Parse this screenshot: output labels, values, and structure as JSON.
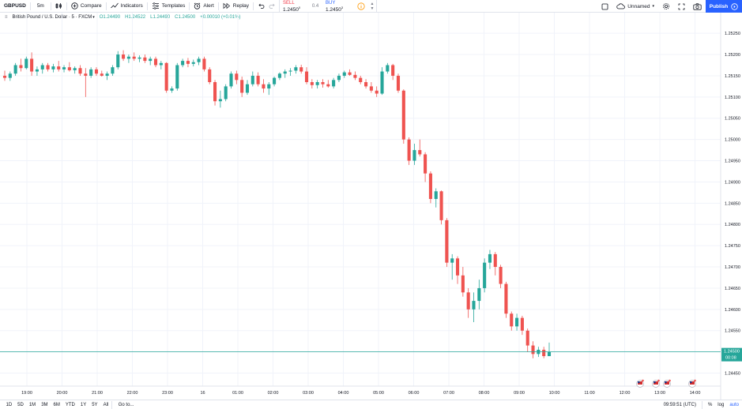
{
  "toolbar": {
    "symbol": "GBPUSD",
    "interval": "5m",
    "compare": "Compare",
    "indicators": "Indicators",
    "templates": "Templates",
    "alert": "Alert",
    "replay": "Replay",
    "layout_name": "Unnamed",
    "publish": "Publish"
  },
  "trade": {
    "sell_label": "SELL",
    "sell_value": "1.2450",
    "sell_sup": "0",
    "spread": "0.4",
    "buy_label": "BUY",
    "buy_value": "1.2450",
    "buy_sup": "3"
  },
  "legend": {
    "title": "British Pound / U.S. Dollar · 5 · FXCM",
    "o": "O1.24490",
    "h": "H1.24522",
    "l": "L1.24490",
    "c": "C1.24500",
    "change": "+0.00010 (+0.01%)"
  },
  "colors": {
    "up": "#26a69a",
    "down": "#ef5350",
    "price_line": "#26a69a",
    "grid": "#f0f3fa"
  },
  "chart_data": {
    "type": "candlestick",
    "symbol": "GBPUSD",
    "interval": "5",
    "y_ticks": [
      "1.25250",
      "1.25200",
      "1.25150",
      "1.25100",
      "1.25050",
      "1.25000",
      "1.24950",
      "1.24900",
      "1.24850",
      "1.24800",
      "1.24750",
      "1.24700",
      "1.24650",
      "1.24600",
      "1.24550",
      "1.24500",
      "1.24450"
    ],
    "x_ticks": [
      "19:00",
      "20:00",
      "21:00",
      "22:00",
      "23:00",
      "16",
      "01:00",
      "02:00",
      "03:00",
      "04:00",
      "05:00",
      "06:00",
      "07:00",
      "08:00",
      "09:00",
      "10:00",
      "11:00",
      "12:00",
      "13:00",
      "14:00"
    ],
    "ylim": [
      1.24425,
      1.2528
    ],
    "last_price": "1.24500",
    "countdown": "00:08",
    "candles": [
      [
        1.2515,
        1.25162,
        1.25138,
        1.25145
      ],
      [
        1.25145,
        1.2516,
        1.25138,
        1.25155
      ],
      [
        1.25155,
        1.2518,
        1.2515,
        1.25175
      ],
      [
        1.25175,
        1.2519,
        1.2516,
        1.25168
      ],
      [
        1.25168,
        1.25195,
        1.25165,
        1.2519
      ],
      [
        1.2519,
        1.25205,
        1.2515,
        1.2516
      ],
      [
        1.2516,
        1.25172,
        1.2515,
        1.25165
      ],
      [
        1.25165,
        1.2518,
        1.25155,
        1.25175
      ],
      [
        1.25175,
        1.2518,
        1.2516,
        1.25165
      ],
      [
        1.25165,
        1.25178,
        1.25158,
        1.25172
      ],
      [
        1.25172,
        1.25185,
        1.2516,
        1.25165
      ],
      [
        1.25165,
        1.25175,
        1.25158,
        1.2517
      ],
      [
        1.2517,
        1.25182,
        1.2516,
        1.25163
      ],
      [
        1.25163,
        1.25172,
        1.25155,
        1.25168
      ],
      [
        1.25168,
        1.25175,
        1.2515,
        1.25155
      ],
      [
        1.25155,
        1.25168,
        1.251,
        1.2515
      ],
      [
        1.2515,
        1.2517,
        1.25145,
        1.25165
      ],
      [
        1.25165,
        1.2517,
        1.2515,
        1.25155
      ],
      [
        1.25155,
        1.25162,
        1.25148,
        1.2515
      ],
      [
        1.2515,
        1.2516,
        1.2514,
        1.25155
      ],
      [
        1.25155,
        1.25175,
        1.2515,
        1.2517
      ],
      [
        1.2517,
        1.25208,
        1.25165,
        1.252
      ],
      [
        1.252,
        1.2521,
        1.25185,
        1.2519
      ],
      [
        1.2519,
        1.252,
        1.2518,
        1.25195
      ],
      [
        1.25195,
        1.25205,
        1.25185,
        1.2519
      ],
      [
        1.2519,
        1.25198,
        1.25182,
        1.25193
      ],
      [
        1.25193,
        1.252,
        1.2518,
        1.25185
      ],
      [
        1.25185,
        1.25195,
        1.25175,
        1.2519
      ],
      [
        1.2519,
        1.25195,
        1.2517,
        1.25175
      ],
      [
        1.25175,
        1.25185,
        1.25165,
        1.2518
      ],
      [
        1.2518,
        1.25182,
        1.2511,
        1.25115
      ],
      [
        1.25115,
        1.25125,
        1.2511,
        1.2512
      ],
      [
        1.2512,
        1.2518,
        1.25115,
        1.25175
      ],
      [
        1.25175,
        1.2519,
        1.2517,
        1.25185
      ],
      [
        1.25185,
        1.25192,
        1.2517,
        1.25178
      ],
      [
        1.25178,
        1.25188,
        1.25172,
        1.25182
      ],
      [
        1.25182,
        1.25195,
        1.25175,
        1.2519
      ],
      [
        1.2519,
        1.25195,
        1.2516,
        1.25165
      ],
      [
        1.25165,
        1.2517,
        1.2513,
        1.25135
      ],
      [
        1.25135,
        1.2514,
        1.2508,
        1.2509
      ],
      [
        1.2509,
        1.25115,
        1.25075,
        1.25095
      ],
      [
        1.25095,
        1.2513,
        1.2509,
        1.25125
      ],
      [
        1.25125,
        1.2516,
        1.2512,
        1.25155
      ],
      [
        1.25155,
        1.25162,
        1.2513,
        1.2514
      ],
      [
        1.2514,
        1.25148,
        1.251,
        1.2511
      ],
      [
        1.2511,
        1.2514,
        1.25105,
        1.2513
      ],
      [
        1.2513,
        1.2516,
        1.25125,
        1.2515
      ],
      [
        1.2515,
        1.25158,
        1.25125,
        1.2513
      ],
      [
        1.2513,
        1.25142,
        1.2511,
        1.2512
      ],
      [
        1.2512,
        1.25135,
        1.25105,
        1.2513
      ],
      [
        1.2513,
        1.25148,
        1.25125,
        1.25145
      ],
      [
        1.25145,
        1.25158,
        1.2514,
        1.25155
      ],
      [
        1.25155,
        1.25165,
        1.25145,
        1.2516
      ],
      [
        1.2516,
        1.25168,
        1.2515,
        1.25162
      ],
      [
        1.25162,
        1.25175,
        1.25155,
        1.2517
      ],
      [
        1.2517,
        1.25176,
        1.25155,
        1.2516
      ],
      [
        1.2516,
        1.2517,
        1.2513,
        1.25135
      ],
      [
        1.25135,
        1.25142,
        1.2512,
        1.25128
      ],
      [
        1.25128,
        1.2514,
        1.2512,
        1.25135
      ],
      [
        1.25135,
        1.25142,
        1.25122,
        1.2513
      ],
      [
        1.2513,
        1.2514,
        1.25122,
        1.25125
      ],
      [
        1.25125,
        1.25145,
        1.2512,
        1.2514
      ],
      [
        1.2514,
        1.25155,
        1.25135,
        1.2515
      ],
      [
        1.2515,
        1.25162,
        1.25145,
        1.25158
      ],
      [
        1.25158,
        1.25165,
        1.2515,
        1.25152
      ],
      [
        1.25152,
        1.2516,
        1.2514,
        1.25145
      ],
      [
        1.25145,
        1.2515,
        1.2513,
        1.25135
      ],
      [
        1.25135,
        1.25142,
        1.2512,
        1.25125
      ],
      [
        1.25125,
        1.25135,
        1.2511,
        1.25115
      ],
      [
        1.25115,
        1.25125,
        1.251,
        1.25108
      ],
      [
        1.25108,
        1.2517,
        1.25105,
        1.2516
      ],
      [
        1.2516,
        1.2518,
        1.25155,
        1.25175
      ],
      [
        1.25175,
        1.25178,
        1.2514,
        1.2515
      ],
      [
        1.2515,
        1.25155,
        1.2511,
        1.25115
      ],
      [
        1.25115,
        1.25118,
        1.2499,
        1.25
      ],
      [
        1.25,
        1.25005,
        1.2494,
        1.2495
      ],
      [
        1.2495,
        1.2499,
        1.2494,
        1.24975
      ],
      [
        1.24975,
        1.25,
        1.2496,
        1.24965
      ],
      [
        1.24965,
        1.2497,
        1.249,
        1.2492
      ],
      [
        1.2492,
        1.24925,
        1.2485,
        1.2486
      ],
      [
        1.2486,
        1.24885,
        1.2484,
        1.24878
      ],
      [
        1.24878,
        1.2488,
        1.248,
        1.2481
      ],
      [
        1.2481,
        1.24815,
        1.247,
        1.2471
      ],
      [
        1.2471,
        1.2473,
        1.2467,
        1.2472
      ],
      [
        1.2472,
        1.24725,
        1.2466,
        1.2468
      ],
      [
        1.2468,
        1.247,
        1.2463,
        1.2464
      ],
      [
        1.2464,
        1.2465,
        1.2458,
        1.246
      ],
      [
        1.246,
        1.2464,
        1.2457,
        1.2462
      ],
      [
        1.2462,
        1.2467,
        1.246,
        1.2465
      ],
      [
        1.2465,
        1.2472,
        1.2464,
        1.2471
      ],
      [
        1.2471,
        1.2474,
        1.24695,
        1.2473
      ],
      [
        1.2473,
        1.24735,
        1.2468,
        1.247
      ],
      [
        1.247,
        1.24705,
        1.2465,
        1.2466
      ],
      [
        1.2466,
        1.24665,
        1.2458,
        1.2459
      ],
      [
        1.2459,
        1.24595,
        1.2455,
        1.2456
      ],
      [
        1.2456,
        1.2459,
        1.2455,
        1.2458
      ],
      [
        1.2458,
        1.24585,
        1.2454,
        1.2455
      ],
      [
        1.2455,
        1.24555,
        1.245,
        1.24515
      ],
      [
        1.24515,
        1.24525,
        1.24485,
        1.24495
      ],
      [
        1.24495,
        1.24512,
        1.24488,
        1.24505
      ],
      [
        1.24505,
        1.24512,
        1.24485,
        1.2449
      ],
      [
        1.2449,
        1.24522,
        1.2449,
        1.245
      ]
    ]
  },
  "events": [
    "event-flag-1",
    "event-flag-2",
    "event-flag-3",
    "event-flag-4"
  ],
  "bottom": {
    "ranges": [
      "1D",
      "5D",
      "1M",
      "3M",
      "6M",
      "YTD",
      "1Y",
      "5Y",
      "All"
    ],
    "goto": "Go to...",
    "clock": "09:59:51 (UTC)",
    "percent": "%",
    "log": "log",
    "auto": "auto"
  }
}
